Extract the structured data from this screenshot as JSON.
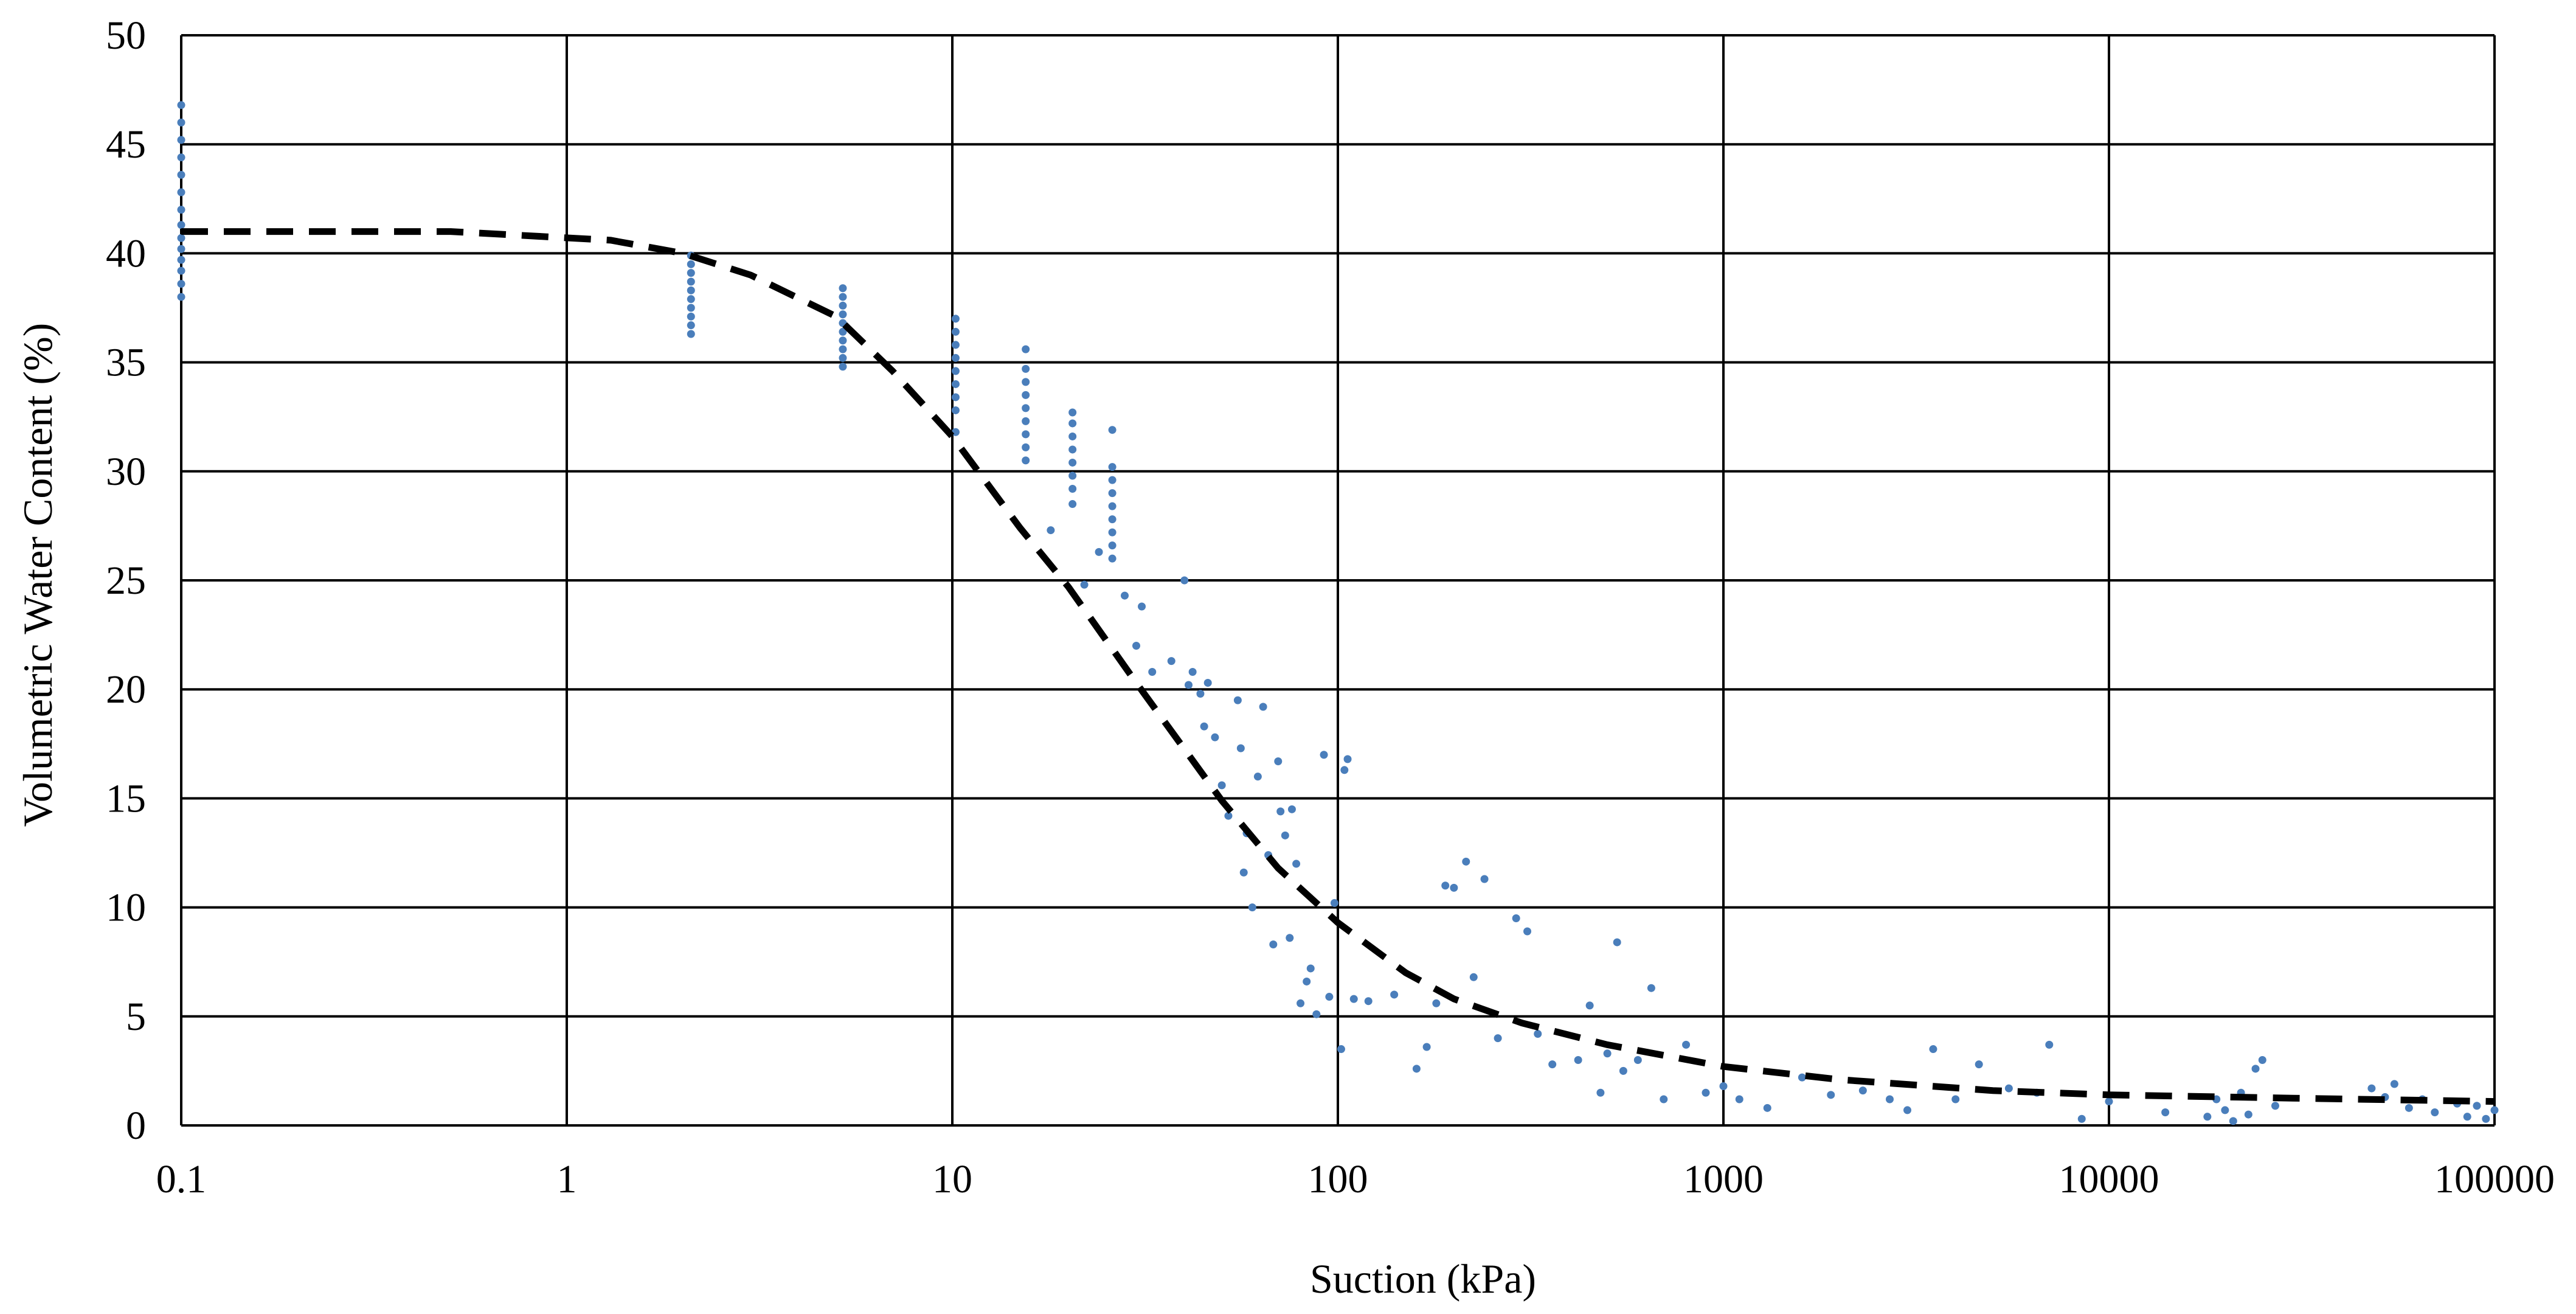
{
  "chart_data": {
    "type": "scatter",
    "title": "",
    "xlabel": "Suction (kPa)",
    "ylabel": "Volumetric Water Content (%)",
    "x_scale": "log",
    "xlim": [
      0.1,
      100000
    ],
    "ylim": [
      0,
      50
    ],
    "grid": true,
    "legend": "none",
    "x_ticks": [
      "0.1",
      "1",
      "10",
      "100",
      "1000",
      "10000",
      "100000"
    ],
    "y_ticks": [
      "0",
      "5",
      "10",
      "15",
      "20",
      "25",
      "30",
      "35",
      "40",
      "45",
      "50"
    ],
    "colors": {
      "points": "#4a7ebb",
      "fit": "#000000"
    },
    "series": [
      {
        "kind": "points",
        "points": [
          [
            0.1,
            38
          ],
          [
            0.1,
            38.6
          ],
          [
            0.1,
            39.2
          ],
          [
            0.1,
            39.7
          ],
          [
            0.1,
            40.2
          ],
          [
            0.1,
            40.7
          ],
          [
            0.1,
            41.3
          ],
          [
            0.1,
            42
          ],
          [
            0.1,
            42.8
          ],
          [
            0.1,
            43.6
          ],
          [
            0.1,
            44.4
          ],
          [
            0.1,
            45.2
          ],
          [
            0.1,
            46
          ],
          [
            0.1,
            46.8
          ],
          [
            2.1,
            36.3
          ],
          [
            2.1,
            36.7
          ],
          [
            2.1,
            37.1
          ],
          [
            2.1,
            37.5
          ],
          [
            2.1,
            37.9
          ],
          [
            2.1,
            38.3
          ],
          [
            2.1,
            38.7
          ],
          [
            2.1,
            39.1
          ],
          [
            2.1,
            39.5
          ],
          [
            2.1,
            39.9
          ],
          [
            5.2,
            34.8
          ],
          [
            5.2,
            35.2
          ],
          [
            5.2,
            35.6
          ],
          [
            5.2,
            36
          ],
          [
            5.2,
            36.4
          ],
          [
            5.2,
            36.8
          ],
          [
            5.2,
            37.2
          ],
          [
            5.2,
            37.6
          ],
          [
            5.2,
            38
          ],
          [
            5.2,
            38.4
          ],
          [
            10.2,
            31.8
          ],
          [
            10.2,
            32.8
          ],
          [
            10.2,
            33.4
          ],
          [
            10.2,
            34
          ],
          [
            10.2,
            34.6
          ],
          [
            10.2,
            35.2
          ],
          [
            10.2,
            35.8
          ],
          [
            10.2,
            36.4
          ],
          [
            10.2,
            37
          ],
          [
            15.5,
            30.5
          ],
          [
            15.5,
            31.1
          ],
          [
            15.5,
            31.7
          ],
          [
            15.5,
            32.3
          ],
          [
            15.5,
            32.9
          ],
          [
            15.5,
            33.5
          ],
          [
            15.5,
            34.1
          ],
          [
            15.5,
            34.7
          ],
          [
            15.5,
            35.6
          ],
          [
            20.5,
            28.5
          ],
          [
            20.5,
            29.2
          ],
          [
            20.5,
            29.8
          ],
          [
            20.5,
            30.4
          ],
          [
            20.5,
            31
          ],
          [
            20.5,
            31.6
          ],
          [
            20.5,
            32.2
          ],
          [
            20.5,
            32.7
          ],
          [
            26,
            26
          ],
          [
            26,
            26.6
          ],
          [
            26,
            27.2
          ],
          [
            26,
            27.8
          ],
          [
            26,
            28.4
          ],
          [
            26,
            29
          ],
          [
            26,
            29.6
          ],
          [
            26,
            30.2
          ],
          [
            26,
            31.9
          ],
          [
            18,
            27.3
          ],
          [
            22,
            24.8
          ],
          [
            24,
            26.3
          ],
          [
            28,
            24.3
          ],
          [
            30,
            22
          ],
          [
            31,
            23.8
          ],
          [
            33,
            20.8
          ],
          [
            37,
            21.3
          ],
          [
            40,
            25
          ],
          [
            41,
            20.2
          ],
          [
            42,
            20.8
          ],
          [
            44,
            19.8
          ],
          [
            45,
            18.3
          ],
          [
            46,
            20.3
          ],
          [
            48,
            17.8
          ],
          [
            50,
            15.6
          ],
          [
            52,
            14.2
          ],
          [
            55,
            19.5
          ],
          [
            56,
            17.3
          ],
          [
            57,
            11.6
          ],
          [
            58,
            13.4
          ],
          [
            60,
            10
          ],
          [
            62,
            16
          ],
          [
            64,
            19.2
          ],
          [
            66,
            12.4
          ],
          [
            68,
            8.3
          ],
          [
            70,
            16.7
          ],
          [
            71,
            14.4
          ],
          [
            73,
            13.3
          ],
          [
            75,
            8.6
          ],
          [
            76,
            14.5
          ],
          [
            78,
            12
          ],
          [
            80,
            5.6
          ],
          [
            83,
            6.6
          ],
          [
            85,
            7.2
          ],
          [
            88,
            5.1
          ],
          [
            92,
            17
          ],
          [
            95,
            5.9
          ],
          [
            98,
            10.2
          ],
          [
            102,
            3.5
          ],
          [
            104,
            16.3
          ],
          [
            106,
            16.8
          ],
          [
            110,
            5.8
          ],
          [
            120,
            5.7
          ],
          [
            140,
            6
          ],
          [
            160,
            2.6
          ],
          [
            170,
            3.6
          ],
          [
            180,
            5.6
          ],
          [
            190,
            11
          ],
          [
            200,
            10.9
          ],
          [
            215,
            12.1
          ],
          [
            225,
            6.8
          ],
          [
            240,
            11.3
          ],
          [
            260,
            4
          ],
          [
            290,
            9.5
          ],
          [
            310,
            8.9
          ],
          [
            330,
            4.2
          ],
          [
            360,
            2.8
          ],
          [
            420,
            3
          ],
          [
            450,
            5.5
          ],
          [
            480,
            1.5
          ],
          [
            500,
            3.3
          ],
          [
            530,
            8.4
          ],
          [
            550,
            2.5
          ],
          [
            600,
            3
          ],
          [
            650,
            6.3
          ],
          [
            700,
            1.2
          ],
          [
            800,
            3.7
          ],
          [
            900,
            1.5
          ],
          [
            1000,
            1.8
          ],
          [
            1100,
            1.2
          ],
          [
            1300,
            0.8
          ],
          [
            1600,
            2.2
          ],
          [
            1900,
            1.4
          ],
          [
            2300,
            1.6
          ],
          [
            2700,
            1.2
          ],
          [
            3000,
            0.7
          ],
          [
            3500,
            3.5
          ],
          [
            4000,
            1.2
          ],
          [
            4600,
            2.8
          ],
          [
            5500,
            1.7
          ],
          [
            6500,
            1.5
          ],
          [
            7000,
            3.7
          ],
          [
            8500,
            0.3
          ],
          [
            10000,
            1.1
          ],
          [
            14000,
            0.6
          ],
          [
            18000,
            0.4
          ],
          [
            19000,
            1.2
          ],
          [
            20000,
            0.7
          ],
          [
            21000,
            0.2
          ],
          [
            22000,
            1.5
          ],
          [
            23000,
            0.5
          ],
          [
            24000,
            2.6
          ],
          [
            25000,
            3
          ],
          [
            27000,
            0.9
          ],
          [
            48000,
            1.7
          ],
          [
            52000,
            1.3
          ],
          [
            55000,
            1.9
          ],
          [
            60000,
            0.8
          ],
          [
            65000,
            1.2
          ],
          [
            70000,
            0.6
          ],
          [
            80000,
            1
          ],
          [
            85000,
            0.4
          ],
          [
            90000,
            0.9
          ],
          [
            95000,
            0.3
          ],
          [
            100000,
            0.7
          ]
        ]
      },
      {
        "kind": "fit",
        "points": [
          [
            0.1,
            41
          ],
          [
            0.5,
            41
          ],
          [
            1.3,
            40.6
          ],
          [
            2,
            40
          ],
          [
            3,
            39
          ],
          [
            5,
            37.1
          ],
          [
            7,
            34.6
          ],
          [
            10,
            31.6
          ],
          [
            15,
            27.4
          ],
          [
            20,
            24.7
          ],
          [
            30,
            20.3
          ],
          [
            50,
            14.9
          ],
          [
            70,
            11.8
          ],
          [
            100,
            9.3
          ],
          [
            150,
            7
          ],
          [
            200,
            5.8
          ],
          [
            300,
            4.7
          ],
          [
            500,
            3.7
          ],
          [
            1000,
            2.7
          ],
          [
            2000,
            2.1
          ],
          [
            5000,
            1.6
          ],
          [
            10000,
            1.4
          ],
          [
            30000,
            1.25
          ],
          [
            100000,
            1.1
          ]
        ]
      }
    ]
  }
}
